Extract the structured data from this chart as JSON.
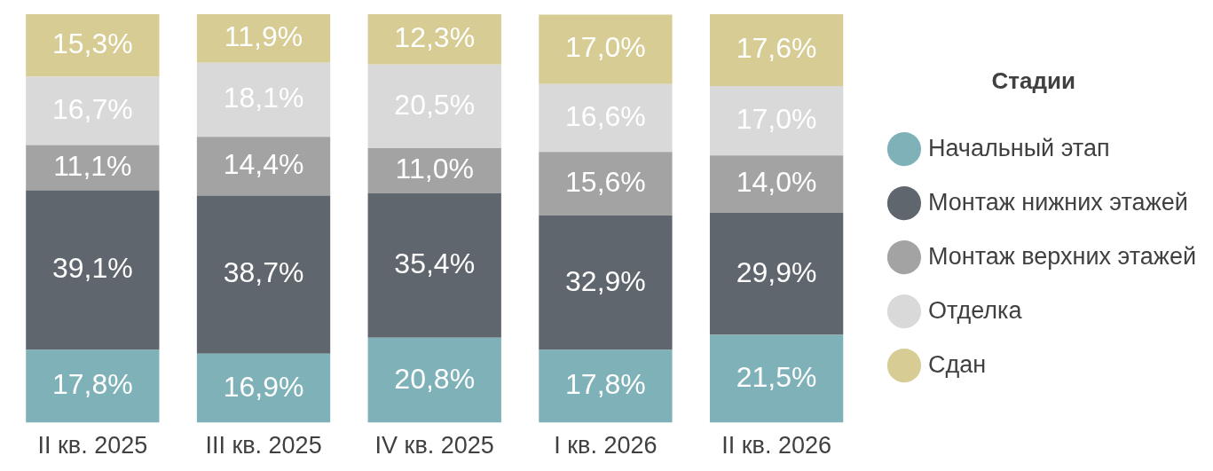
{
  "chart_data": {
    "type": "bar",
    "stacked": true,
    "categories": [
      "II кв. 2025",
      "III кв. 2025",
      "IV кв. 2025",
      "I кв. 2026",
      "II кв. 2026"
    ],
    "legend": "right",
    "legend_title": "Стадии",
    "series": [
      {
        "name": "Начальный этап",
        "color": "#7fb2b8",
        "values": [
          17.8,
          16.9,
          20.8,
          17.8,
          21.5
        ],
        "value_labels": [
          "17,8%",
          "16,9%",
          "20,8%",
          "17,8%",
          "21,5%"
        ]
      },
      {
        "name": "Монтаж нижних этажей",
        "color": "#5f666d",
        "values": [
          39.1,
          38.7,
          35.4,
          32.9,
          29.9
        ],
        "value_labels": [
          "39,1%",
          "38,7%",
          "35,4%",
          "32,9%",
          "29,9%"
        ]
      },
      {
        "name": "Монтаж верхних этажей",
        "color": "#a3a3a3",
        "values": [
          11.1,
          14.4,
          11.0,
          15.6,
          14.0
        ],
        "value_labels": [
          "11,1%",
          "14,4%",
          "11,0%",
          "15,6%",
          "14,0%"
        ]
      },
      {
        "name": "Отделка",
        "color": "#d9d9d9",
        "values": [
          16.7,
          18.1,
          20.5,
          16.6,
          17.0
        ],
        "value_labels": [
          "16,7%",
          "18,1%",
          "20,5%",
          "16,6%",
          "17,0%"
        ]
      },
      {
        "name": "Сдан",
        "color": "#d6cc94",
        "values": [
          15.3,
          11.9,
          12.3,
          17.0,
          17.6
        ],
        "value_labels": [
          "15,3%",
          "11,9%",
          "12,3%",
          "17,0%",
          "17,6%"
        ]
      }
    ]
  }
}
